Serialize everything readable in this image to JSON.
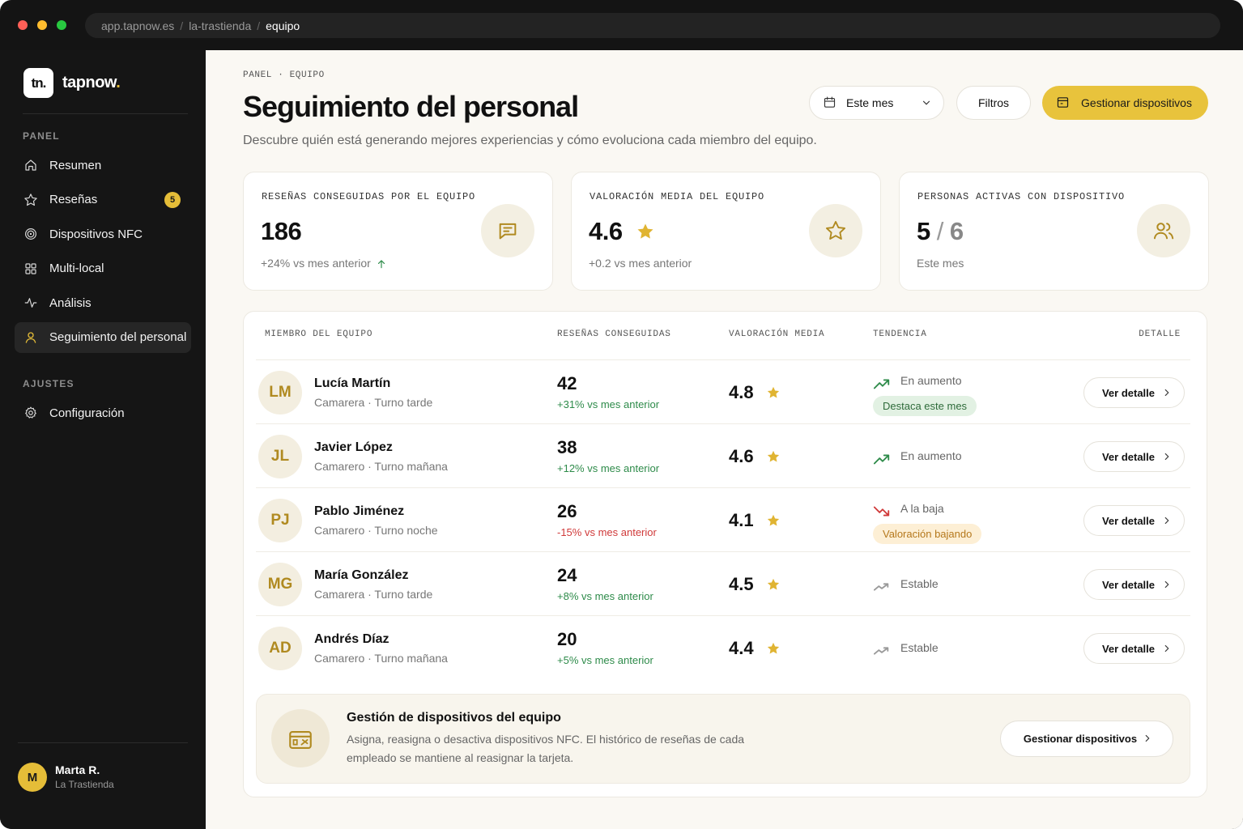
{
  "browser": {
    "url_host": "app.tapnow.es",
    "url_separator": "/",
    "url_path": [
      "la-trastienda",
      "equipo"
    ]
  },
  "sidebar": {
    "logo_mark": "tn.",
    "brand": "tapnow",
    "brand_dot": ".",
    "sections": [
      {
        "title": "PANEL",
        "items": [
          {
            "label": "Resumen"
          },
          {
            "label": "Reseñas",
            "badge": "5"
          },
          {
            "label": "Dispositivos NFC"
          },
          {
            "label": "Multi-local"
          },
          {
            "label": "Análisis"
          },
          {
            "label": "Seguimiento del personal",
            "active": true
          }
        ]
      },
      {
        "title": "AJUSTES",
        "items": [
          {
            "label": "Configuración"
          }
        ]
      }
    ],
    "user": {
      "initial": "M",
      "name": "Marta R.",
      "location": "La Trastienda"
    }
  },
  "header": {
    "breadcrumb": "PANEL · EQUIPO",
    "title": "Seguimiento del personal",
    "subtitle": "Descubre quién está generando mejores experiencias y cómo evoluciona cada miembro del equipo.",
    "period_select": "Este mes",
    "filters_button": "Filtros",
    "primary_button": "Gestionar dispositivos"
  },
  "kpis": [
    {
      "label": "RESEÑAS CONSEGUIDAS POR EL EQUIPO",
      "value": "186",
      "note": "+24% vs mes anterior"
    },
    {
      "label": "VALORACIÓN MEDIA DEL EQUIPO",
      "value": "4.6",
      "note": "+0.2 vs mes anterior"
    },
    {
      "label": "PERSONAS ACTIVAS CON DISPOSITIVO",
      "value": "5",
      "separator": "/",
      "total": "6",
      "note": "Este mes"
    }
  ],
  "table": {
    "columns": [
      "MIEMBRO DEL EQUIPO",
      "RESEÑAS CONSEGUIDAS",
      "VALORACIÓN MEDIA",
      "TENDENCIA",
      "DETALLE"
    ],
    "rows": [
      {
        "initials": "LM",
        "name": "Lucía Martín",
        "role": "Camarera · Turno tarde",
        "reviews": 42,
        "reviews_change": "+31% vs mes anterior",
        "rating": 4.8,
        "trend": "En aumento",
        "trend_direction": "up",
        "tag": "Destaca este mes",
        "action": "Ver detalle"
      },
      {
        "initials": "JL",
        "name": "Javier López",
        "role": "Camarero · Turno mañana",
        "reviews": 38,
        "reviews_change": "+12% vs mes anterior",
        "rating": 4.6,
        "trend": "En aumento",
        "trend_direction": "up",
        "action": "Ver detalle"
      },
      {
        "initials": "PJ",
        "name": "Pablo Jiménez",
        "role": "Camarero · Turno noche",
        "reviews": 26,
        "reviews_change": "-15% vs mes anterior",
        "rating": 4.1,
        "trend": "A la baja",
        "trend_direction": "down",
        "tag": "Valoración bajando",
        "action": "Ver detalle"
      },
      {
        "initials": "MG",
        "name": "María González",
        "role": "Camarera · Turno tarde",
        "reviews": 24,
        "reviews_change": "+8% vs mes anterior",
        "rating": 4.5,
        "trend": "Estable",
        "trend_direction": "flat",
        "action": "Ver detalle"
      },
      {
        "initials": "AD",
        "name": "Andrés Díaz",
        "role": "Camarero · Turno mañana",
        "reviews": 20,
        "reviews_change": "+5% vs mes anterior",
        "rating": 4.4,
        "trend": "Estable",
        "trend_direction": "flat",
        "action": "Ver detalle"
      }
    ]
  },
  "footer_card": {
    "title": "Gestión de dispositivos del equipo",
    "description": "Asigna, reasigna o desactiva dispositivos NFC. El histórico de reseñas de cada empleado se mantiene al reasignar la tarjeta.",
    "button": "Gestionar dispositivos"
  }
}
